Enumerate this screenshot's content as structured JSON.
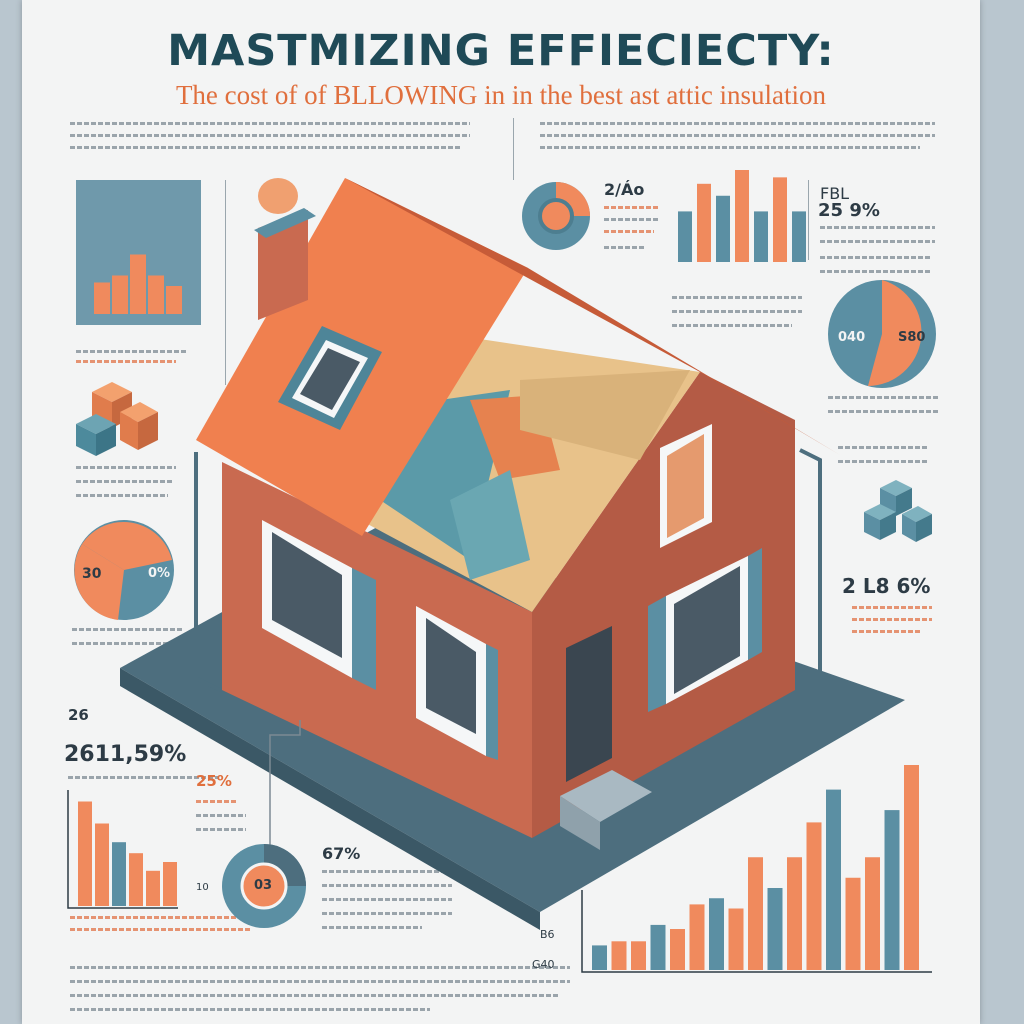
{
  "header": {
    "title": "MASTMIZING EFFIECIECTY:",
    "subtitle": "The cost  of of BLLOWING in in the best ast attic  insulation"
  },
  "stats": {
    "top_right_a": "2/Áo",
    "top_right_b": "FBL",
    "top_right_c": "25 9%",
    "pie_right_left": "040",
    "pie_right_right": "S80",
    "pie_left_left": "30",
    "pie_left_right": "0%",
    "mid_right": "2 L8 6%",
    "bottom_left_a": "26",
    "bottom_left_b": "2611,59%",
    "bottom_left_c": "25%",
    "donut_bottom_center": "67%",
    "donut_bottom_inner": "03",
    "axis_a": "B6",
    "axis_b": "G40",
    "small_label": "10"
  },
  "colors": {
    "navy": "#1f4a57",
    "orange": "#f08a5d",
    "teal": "#5b8fa3",
    "brick": "#c96a50",
    "roof": "#f0804f"
  },
  "charts": {
    "top_left_bars": [
      0.45,
      0.55,
      0.85,
      0.55,
      0.4
    ],
    "top_mid_bars": [
      0.55,
      0.85,
      0.72,
      1.0,
      0.55,
      0.92,
      0.55
    ],
    "bottom_left_bars": [
      0.95,
      0.75,
      0.58,
      0.48,
      0.32,
      0.4
    ],
    "bottom_right_bars": [
      0.12,
      0.14,
      0.14,
      0.22,
      0.2,
      0.32,
      0.35,
      0.3,
      0.55,
      0.4,
      0.55,
      0.72,
      0.88,
      0.45,
      0.55,
      0.78,
      1.0
    ]
  }
}
